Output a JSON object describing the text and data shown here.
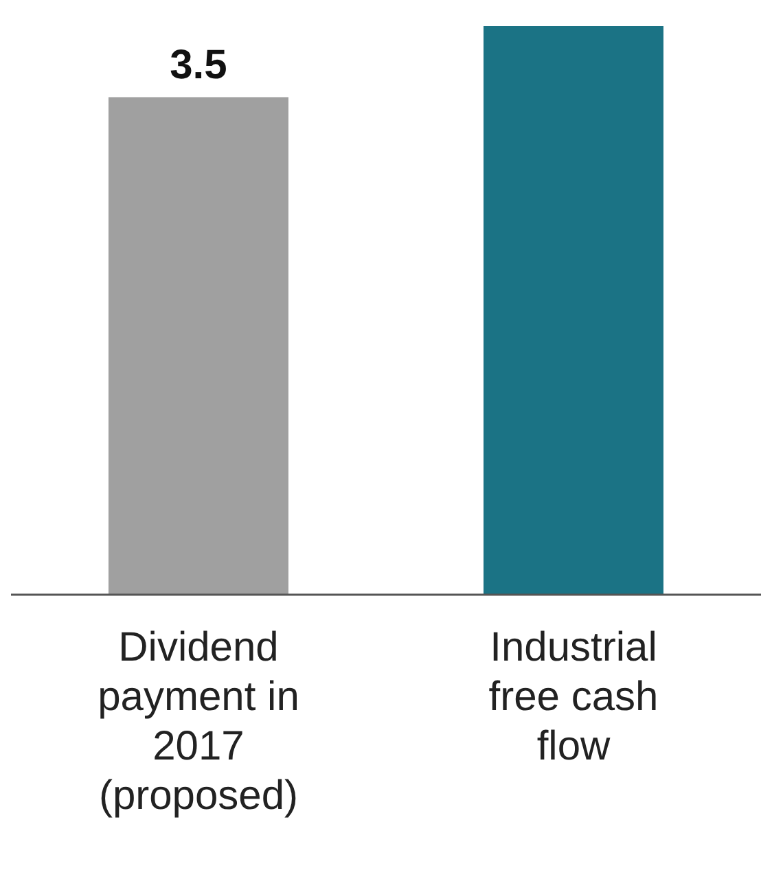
{
  "chart_data": {
    "type": "bar",
    "categories": [
      "Dividend payment in 2017 (proposed)",
      "Industrial free cash flow"
    ],
    "values": [
      3.5,
      4.0
    ],
    "value_labels": [
      "3.5",
      null
    ],
    "colors": [
      "#a0a0a0",
      "#1b7385"
    ],
    "grid": false,
    "legend": false
  }
}
